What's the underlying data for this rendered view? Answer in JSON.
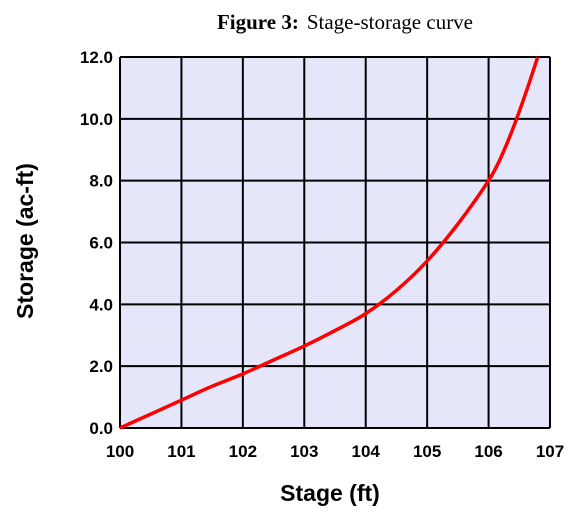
{
  "chart_data": {
    "type": "line",
    "title_prefix": "Figure 3:",
    "title": "Stage-storage curve",
    "xlabel": "Stage (ft)",
    "ylabel": "Storage (ac-ft)",
    "xlim": [
      100,
      107
    ],
    "ylim": [
      0,
      12
    ],
    "x_ticks": [
      "100",
      "101",
      "102",
      "103",
      "104",
      "105",
      "106",
      "107"
    ],
    "y_ticks": [
      "0.0",
      "2.0",
      "4.0",
      "6.0",
      "8.0",
      "10.0",
      "12.0"
    ],
    "x_tick_values": [
      100,
      101,
      102,
      103,
      104,
      105,
      106,
      107
    ],
    "y_tick_values": [
      0,
      2,
      4,
      6,
      8,
      10,
      12
    ],
    "grid": true,
    "plot_background": "#e6e6fa",
    "grid_color": "#000000",
    "series": [
      {
        "color": "#ff0000",
        "x": [
          100.0,
          100.5,
          101.0,
          101.5,
          102.0,
          102.5,
          103.0,
          103.5,
          104.0,
          104.5,
          105.0,
          105.5,
          106.0,
          106.2,
          106.4,
          106.6,
          106.8
        ],
        "y": [
          0.0,
          0.45,
          0.9,
          1.35,
          1.75,
          2.2,
          2.65,
          3.15,
          3.7,
          4.45,
          5.4,
          6.6,
          8.0,
          8.75,
          9.7,
          10.8,
          12.0
        ]
      }
    ]
  }
}
